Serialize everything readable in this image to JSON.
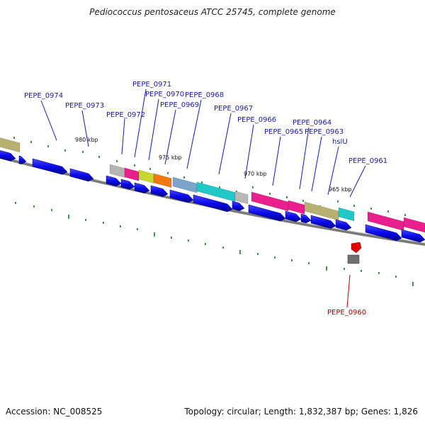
{
  "title": "Pediococcus pentosaceus ATCC 25745, complete genome",
  "accession": "Accession: NC_008525",
  "summary": "Topology: circular; Length: 1,832,387 bp; Genes: 1,826",
  "scale_labels": [
    "980 kbp",
    "975 kbp",
    "970 kbp",
    "965 kbp"
  ],
  "gene_labels": [
    {
      "name": "PEPE_0974",
      "highlight": false
    },
    {
      "name": "PEPE_0973",
      "highlight": false
    },
    {
      "name": "PEPE_0972",
      "highlight": false
    },
    {
      "name": "PEPE_0971",
      "highlight": false
    },
    {
      "name": "PEPE_0970",
      "highlight": false
    },
    {
      "name": "PEPE_0969",
      "highlight": false
    },
    {
      "name": "PEPE_0968",
      "highlight": false
    },
    {
      "name": "PEPE_0967",
      "highlight": false
    },
    {
      "name": "PEPE_0966",
      "highlight": false
    },
    {
      "name": "PEPE_0965",
      "highlight": false
    },
    {
      "name": "PEPE_0964",
      "highlight": false
    },
    {
      "name": "PEPE_0963",
      "highlight": false
    },
    {
      "name": "hslU",
      "highlight": false
    },
    {
      "name": "PEPE_0961",
      "highlight": false
    },
    {
      "name": "PEPE_0960",
      "highlight": true
    }
  ],
  "colors": {
    "label_default": "#1a1aaa",
    "label_highlight": "#b00000",
    "cds": "#0a0aee",
    "backbone": "#7a7a7a",
    "tick": "#1a7a1a",
    "highlight_gene": "#e00000"
  }
}
